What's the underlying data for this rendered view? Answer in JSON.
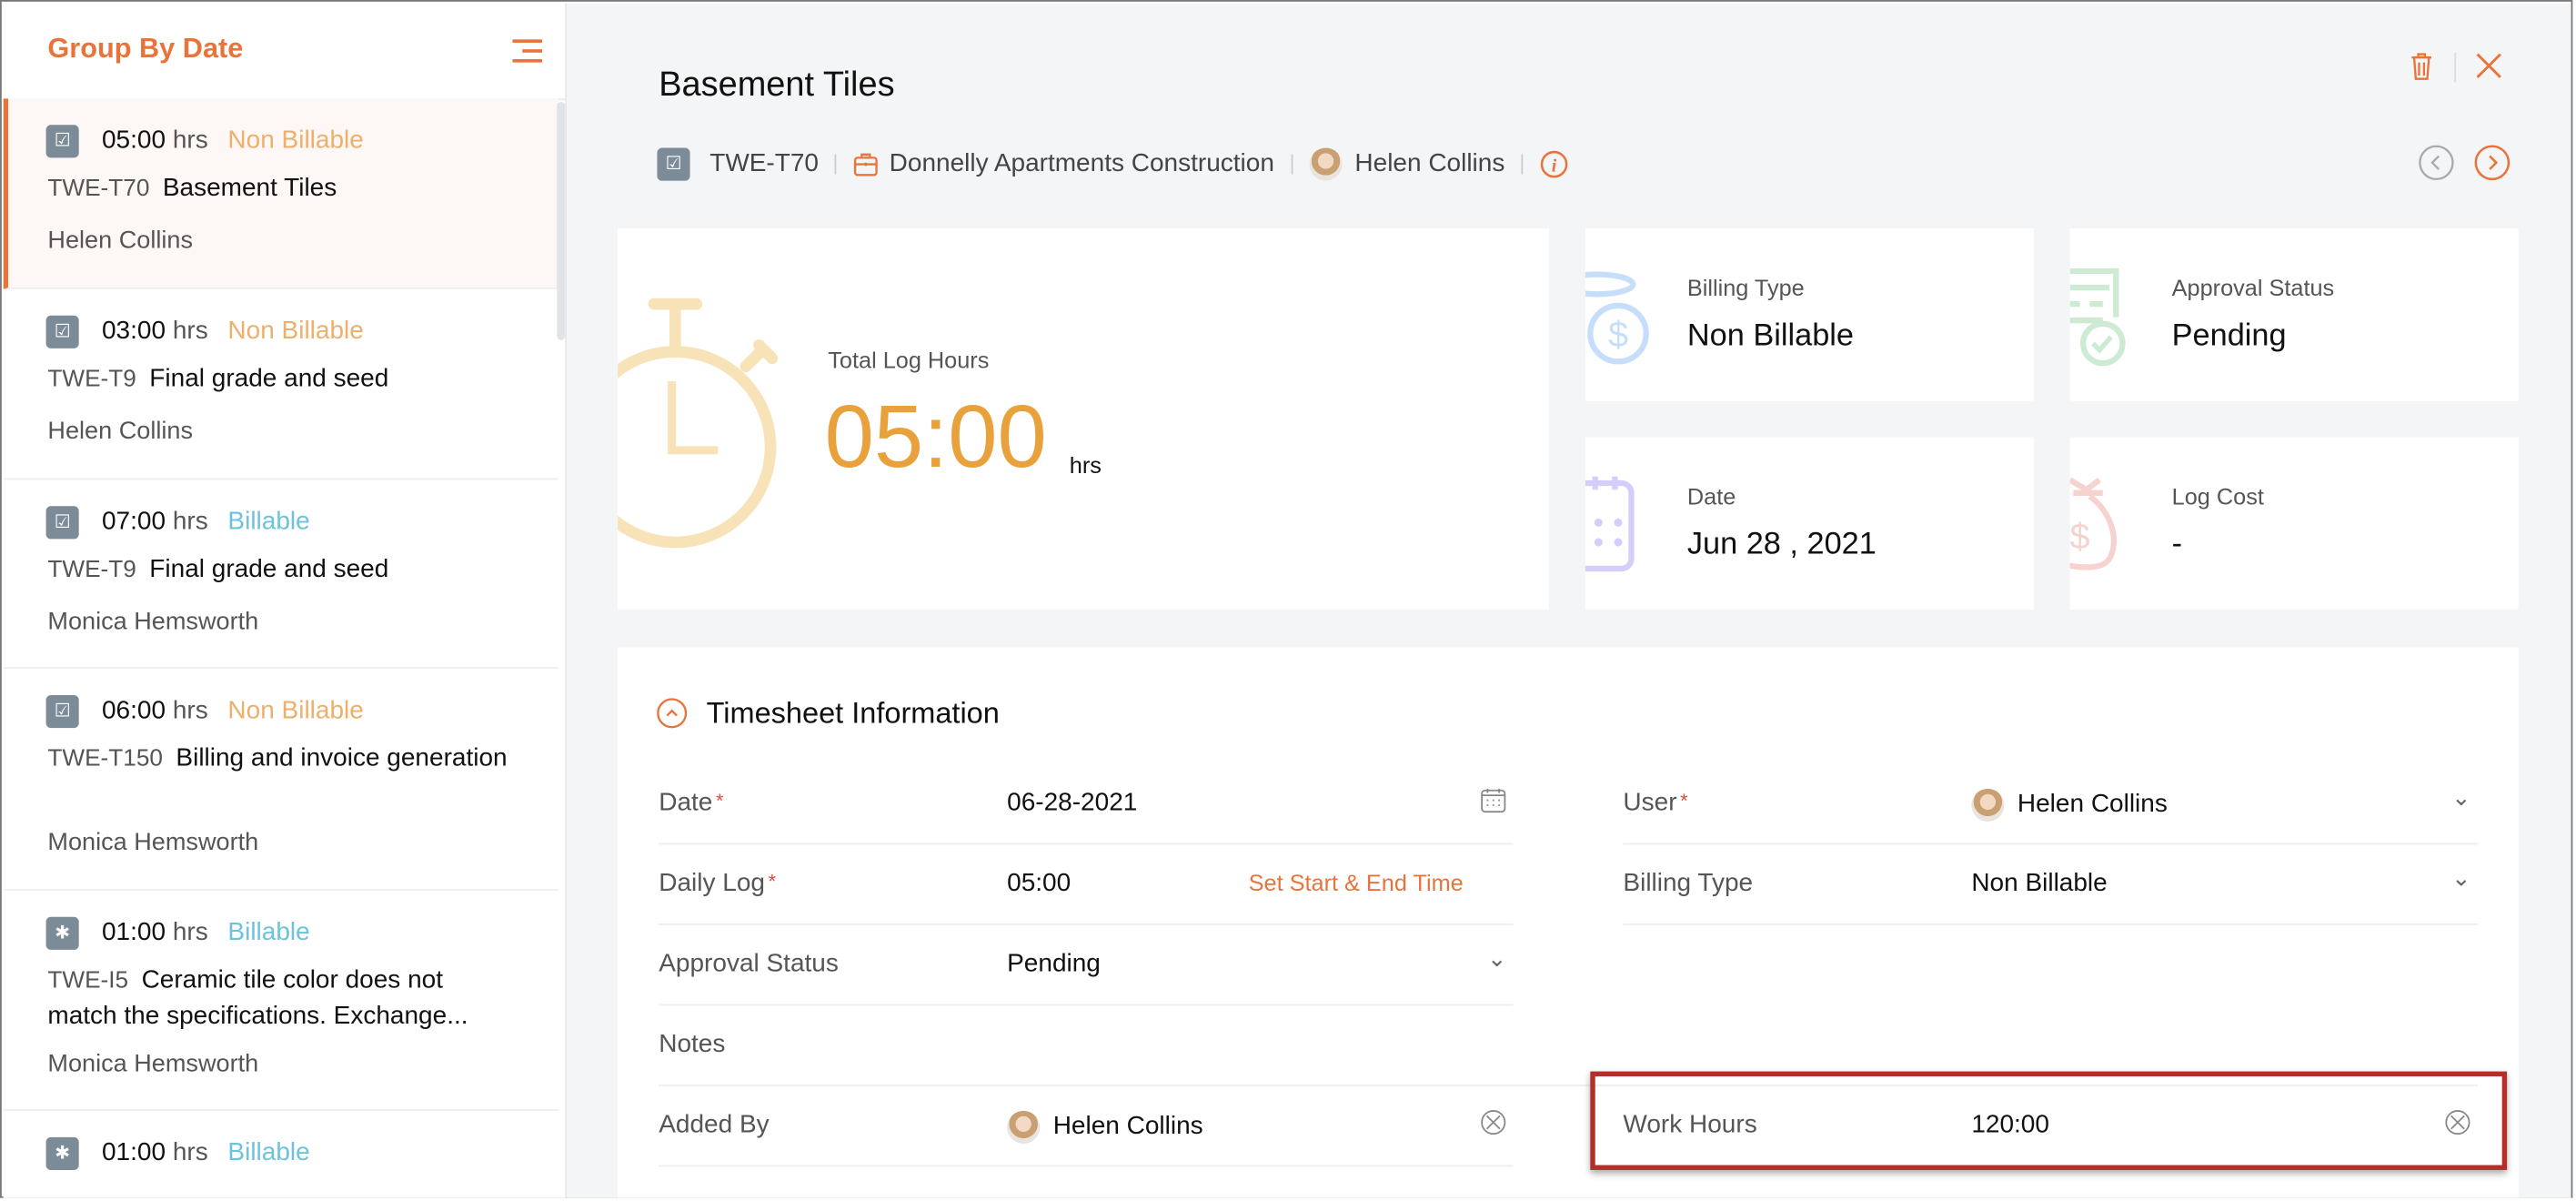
{
  "colors": {
    "accent": "#e8743b",
    "non_billable": "#ecb06c",
    "billable": "#6cc3dc",
    "highlight": "#b3302a"
  },
  "sidebar": {
    "title": "Group By Date",
    "menu_icon": "menu-icon",
    "items": [
      {
        "icon": "task-icon",
        "hours": "05:00",
        "unit": "hrs",
        "billing": "Non Billable",
        "code": "TWE-T70",
        "title": "Basement Tiles",
        "user": "Helen Collins",
        "selected": true
      },
      {
        "icon": "task-icon",
        "hours": "03:00",
        "unit": "hrs",
        "billing": "Non Billable",
        "code": "TWE-T9",
        "title": "Final grade and seed",
        "user": "Helen Collins"
      },
      {
        "icon": "task-icon",
        "hours": "07:00",
        "unit": "hrs",
        "billing": "Billable",
        "code": "TWE-T9",
        "title": "Final grade and seed",
        "user": "Monica Hemsworth"
      },
      {
        "icon": "task-icon",
        "hours": "06:00",
        "unit": "hrs",
        "billing": "Non Billable",
        "code": "TWE-T150",
        "title": "Billing and invoice generation",
        "user": "Monica Hemsworth"
      },
      {
        "icon": "bug-icon",
        "hours": "01:00",
        "unit": "hrs",
        "billing": "Billable",
        "code": "TWE-I5",
        "title": "Ceramic tile color does not match the specifications. Exchange...",
        "user": "Monica Hemsworth"
      },
      {
        "icon": "bug-icon",
        "hours": "01:00",
        "unit": "hrs",
        "billing": "Billable",
        "code": "",
        "title": "",
        "user": ""
      }
    ]
  },
  "header": {
    "title": "Basement Tiles",
    "code": "TWE-T70",
    "project": "Donnelly Apartments Construction",
    "owner": "Helen Collins"
  },
  "summary": {
    "total_label": "Total Log Hours",
    "total_value": "05:00",
    "total_unit": "hrs",
    "billing_label": "Billing Type",
    "billing_value": "Non Billable",
    "approval_label": "Approval Status",
    "approval_value": "Pending",
    "date_label": "Date",
    "date_value": "Jun 28 , 2021",
    "cost_label": "Log Cost",
    "cost_value": "-"
  },
  "section": {
    "title": "Timesheet Information"
  },
  "fields": {
    "date": {
      "label": "Date",
      "value": "06-28-2021"
    },
    "daily_log": {
      "label": "Daily Log",
      "value": "05:00",
      "action": "Set Start & End Time"
    },
    "approval": {
      "label": "Approval Status",
      "value": "Pending"
    },
    "notes": {
      "label": "Notes",
      "value": ""
    },
    "added_by": {
      "label": "Added By",
      "value": "Helen Collins"
    },
    "user": {
      "label": "User",
      "value": "Helen Collins"
    },
    "billing": {
      "label": "Billing Type",
      "value": "Non Billable"
    },
    "work_hours": {
      "label": "Work Hours",
      "value": "120:00"
    }
  }
}
